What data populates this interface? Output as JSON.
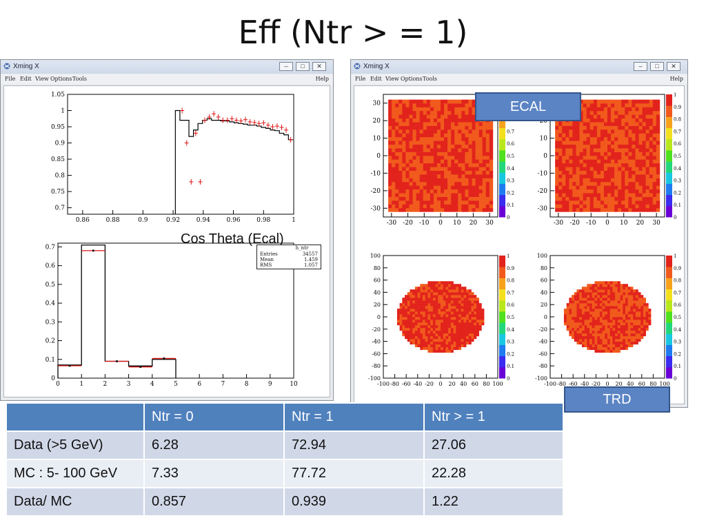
{
  "slide": {
    "title": "Eff (Ntr > = 1)"
  },
  "window_left": {
    "title": "Xming X",
    "menu": [
      "File",
      "Edit",
      "View",
      "Options",
      "Tools"
    ],
    "help": "Help",
    "top_plot": {
      "y_ticks": [
        "1.05",
        "1",
        "0.95",
        "0.9",
        "0.85",
        "0.8",
        "0.75",
        "0.7"
      ],
      "x_ticks": [
        "0.86",
        "0.88",
        "0.9",
        "0.92",
        "0.94",
        "0.96",
        "0.98",
        "1"
      ]
    },
    "xlabel": "Cos Theta (Ecal)",
    "bottom_plot": {
      "y_ticks": [
        "0.7",
        "0.6",
        "0.5",
        "0.4",
        "0.3",
        "0.2",
        "0.1",
        "0"
      ],
      "x_ticks": [
        "0",
        "1",
        "2",
        "3",
        "4",
        "5",
        "6",
        "7",
        "8",
        "9",
        "10"
      ],
      "statbox": {
        "title": "h_ntr",
        "rows": [
          {
            "label": "Entries",
            "value": "34557"
          },
          {
            "label": "Mean",
            "value": "1.459"
          },
          {
            "label": "RMS",
            "value": "1.057"
          }
        ]
      }
    }
  },
  "window_right": {
    "title": "Xming X",
    "menu": [
      "File",
      "Edit",
      "View",
      "Options",
      "Tools"
    ],
    "help": "Help",
    "ecal_y_ticks": [
      "30",
      "20",
      "10",
      "0",
      "-10",
      "-20",
      "-30"
    ],
    "ecal_x_ticks": [
      "-30",
      "-20",
      "-10",
      "0",
      "10",
      "20",
      "30"
    ],
    "trd_y_ticks": [
      "100",
      "80",
      "60",
      "40",
      "20",
      "0",
      "-20",
      "-40",
      "-60",
      "-80",
      "-100"
    ],
    "trd_x_ticks": [
      "-100",
      "-80",
      "-60",
      "-40",
      "-20",
      "0",
      "20",
      "40",
      "60",
      "80",
      "100"
    ],
    "colorbar_ticks": [
      "1",
      "0.9",
      "0.8",
      "0.7",
      "0.6",
      "0.5",
      "0.4",
      "0.3",
      "0.2",
      "0.1",
      "0"
    ]
  },
  "callouts": {
    "ecal": "ECAL",
    "trd": "TRD"
  },
  "table": {
    "headers": [
      "",
      "Ntr = 0",
      "Ntr  = 1",
      "Ntr > = 1"
    ],
    "rows": [
      [
        "Data  (>5 GeV)",
        "6.28",
        "72.94",
        "27.06"
      ],
      [
        "MC  : 5- 100 GeV",
        "7.33",
        "77.72",
        "22.28"
      ],
      [
        "Data/ MC",
        "0.857",
        "0.939",
        "1.22"
      ]
    ]
  },
  "chart_data": [
    {
      "type": "line",
      "xlim": [
        0.85,
        1.0
      ],
      "ylim": [
        0.68,
        1.05
      ],
      "series": [
        {
          "x": [
            0.923,
            0.926,
            0.929,
            0.932,
            0.935,
            0.938,
            0.941,
            0.944,
            0.947,
            0.95,
            0.953,
            0.956,
            0.959,
            0.962,
            0.965,
            0.968,
            0.971,
            0.974,
            0.977,
            0.98,
            0.983,
            0.986,
            0.989,
            0.992,
            0.995,
            0.998
          ],
          "values": [
            1.0,
            0.97,
            0.97,
            0.92,
            0.94,
            0.96,
            0.97,
            0.975,
            0.97,
            0.97,
            0.968,
            0.968,
            0.965,
            0.962,
            0.96,
            0.958,
            0.955,
            0.955,
            0.952,
            0.948,
            0.945,
            0.94,
            0.938,
            0.93,
            0.925,
            0.91
          ]
        },
        {
          "x": [
            0.926,
            0.929,
            0.932,
            0.935,
            0.938,
            0.941,
            0.944,
            0.947,
            0.95,
            0.953,
            0.956,
            0.959,
            0.962,
            0.965,
            0.968,
            0.971,
            0.974,
            0.977,
            0.98,
            0.983,
            0.986,
            0.989,
            0.992,
            0.995,
            0.998
          ],
          "values": [
            1.0,
            0.9,
            0.78,
            0.93,
            0.78,
            0.97,
            0.98,
            0.99,
            0.98,
            0.97,
            0.97,
            0.975,
            0.97,
            0.968,
            0.972,
            0.965,
            0.963,
            0.96,
            0.962,
            0.955,
            0.95,
            0.952,
            0.948,
            0.94,
            0.91
          ]
        }
      ]
    },
    {
      "type": "bar",
      "categories": [
        "0-1",
        "1-2",
        "2-3",
        "3-4",
        "4-5"
      ],
      "xlim": [
        0,
        10
      ],
      "ylim": [
        0,
        0.72
      ],
      "series": [
        {
          "values": [
            0.07,
            0.71,
            0.09,
            0.065,
            0.1
          ]
        },
        {
          "values": [
            0.066,
            0.68,
            0.09,
            0.06,
            0.105
          ]
        }
      ]
    },
    {
      "type": "heatmap",
      "xlim": [
        -35,
        35
      ],
      "ylim": [
        -35,
        35
      ],
      "zlim": [
        0,
        1
      ],
      "levels": [
        0.85,
        0.9,
        0.95,
        1.0
      ]
    },
    {
      "type": "heatmap",
      "xlim": [
        -35,
        35
      ],
      "ylim": [
        -35,
        35
      ],
      "zlim": [
        0,
        1
      ],
      "levels": [
        0.85,
        0.9,
        0.95,
        1.0
      ]
    },
    {
      "type": "heatmap",
      "xlim": [
        -100,
        100
      ],
      "ylim": [
        -100,
        100
      ],
      "zlim": [
        0,
        1
      ],
      "levels": [
        0.9,
        0.95,
        1.0
      ]
    },
    {
      "type": "heatmap",
      "xlim": [
        -100,
        100
      ],
      "ylim": [
        -100,
        100
      ],
      "zlim": [
        0,
        1
      ],
      "levels": [
        0.85,
        0.9,
        0.95,
        1.0
      ]
    }
  ]
}
